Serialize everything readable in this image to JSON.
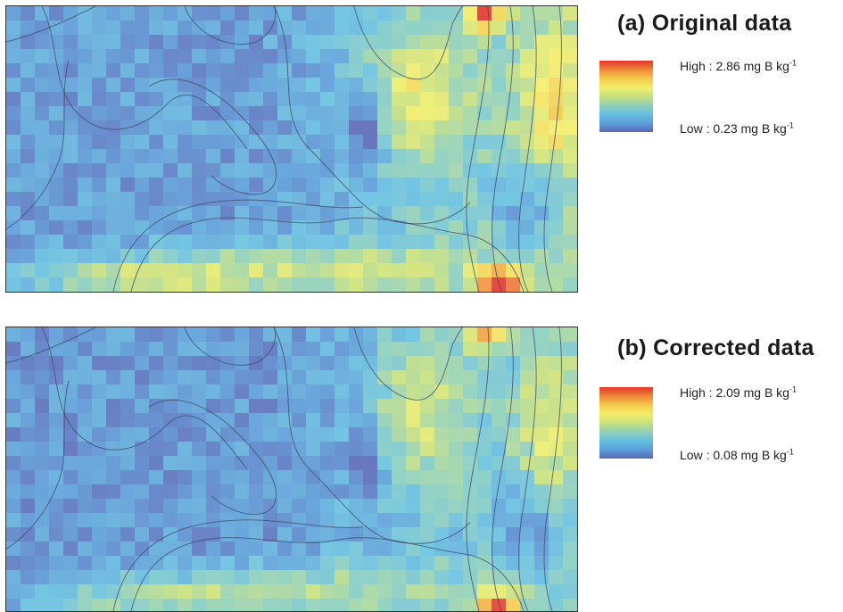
{
  "panels": [
    {
      "title": "(a) Original data",
      "legend": {
        "high_label": "High : 2.86 mg B kg",
        "low_label": "Low : 0.23 mg B kg",
        "unit_exponent": "-1",
        "high_value": 2.86,
        "low_value": 0.23
      }
    },
    {
      "title": "(b) Corrected data",
      "legend": {
        "high_label": "High : 2.09 mg B kg",
        "low_label": "Low : 0.08 mg B kg",
        "unit_exponent": "-1",
        "high_value": 2.09,
        "low_value": 0.08
      }
    }
  ],
  "colors": {
    "ramp": [
      "#e0362c",
      "#f08a3a",
      "#f4c94a",
      "#f2ee6a",
      "#c8e07a",
      "#8fd0b8",
      "#66c0e0",
      "#5a9cd8",
      "#5868b8"
    ],
    "contour": "#3d4a6a",
    "frame": "#333333"
  }
}
